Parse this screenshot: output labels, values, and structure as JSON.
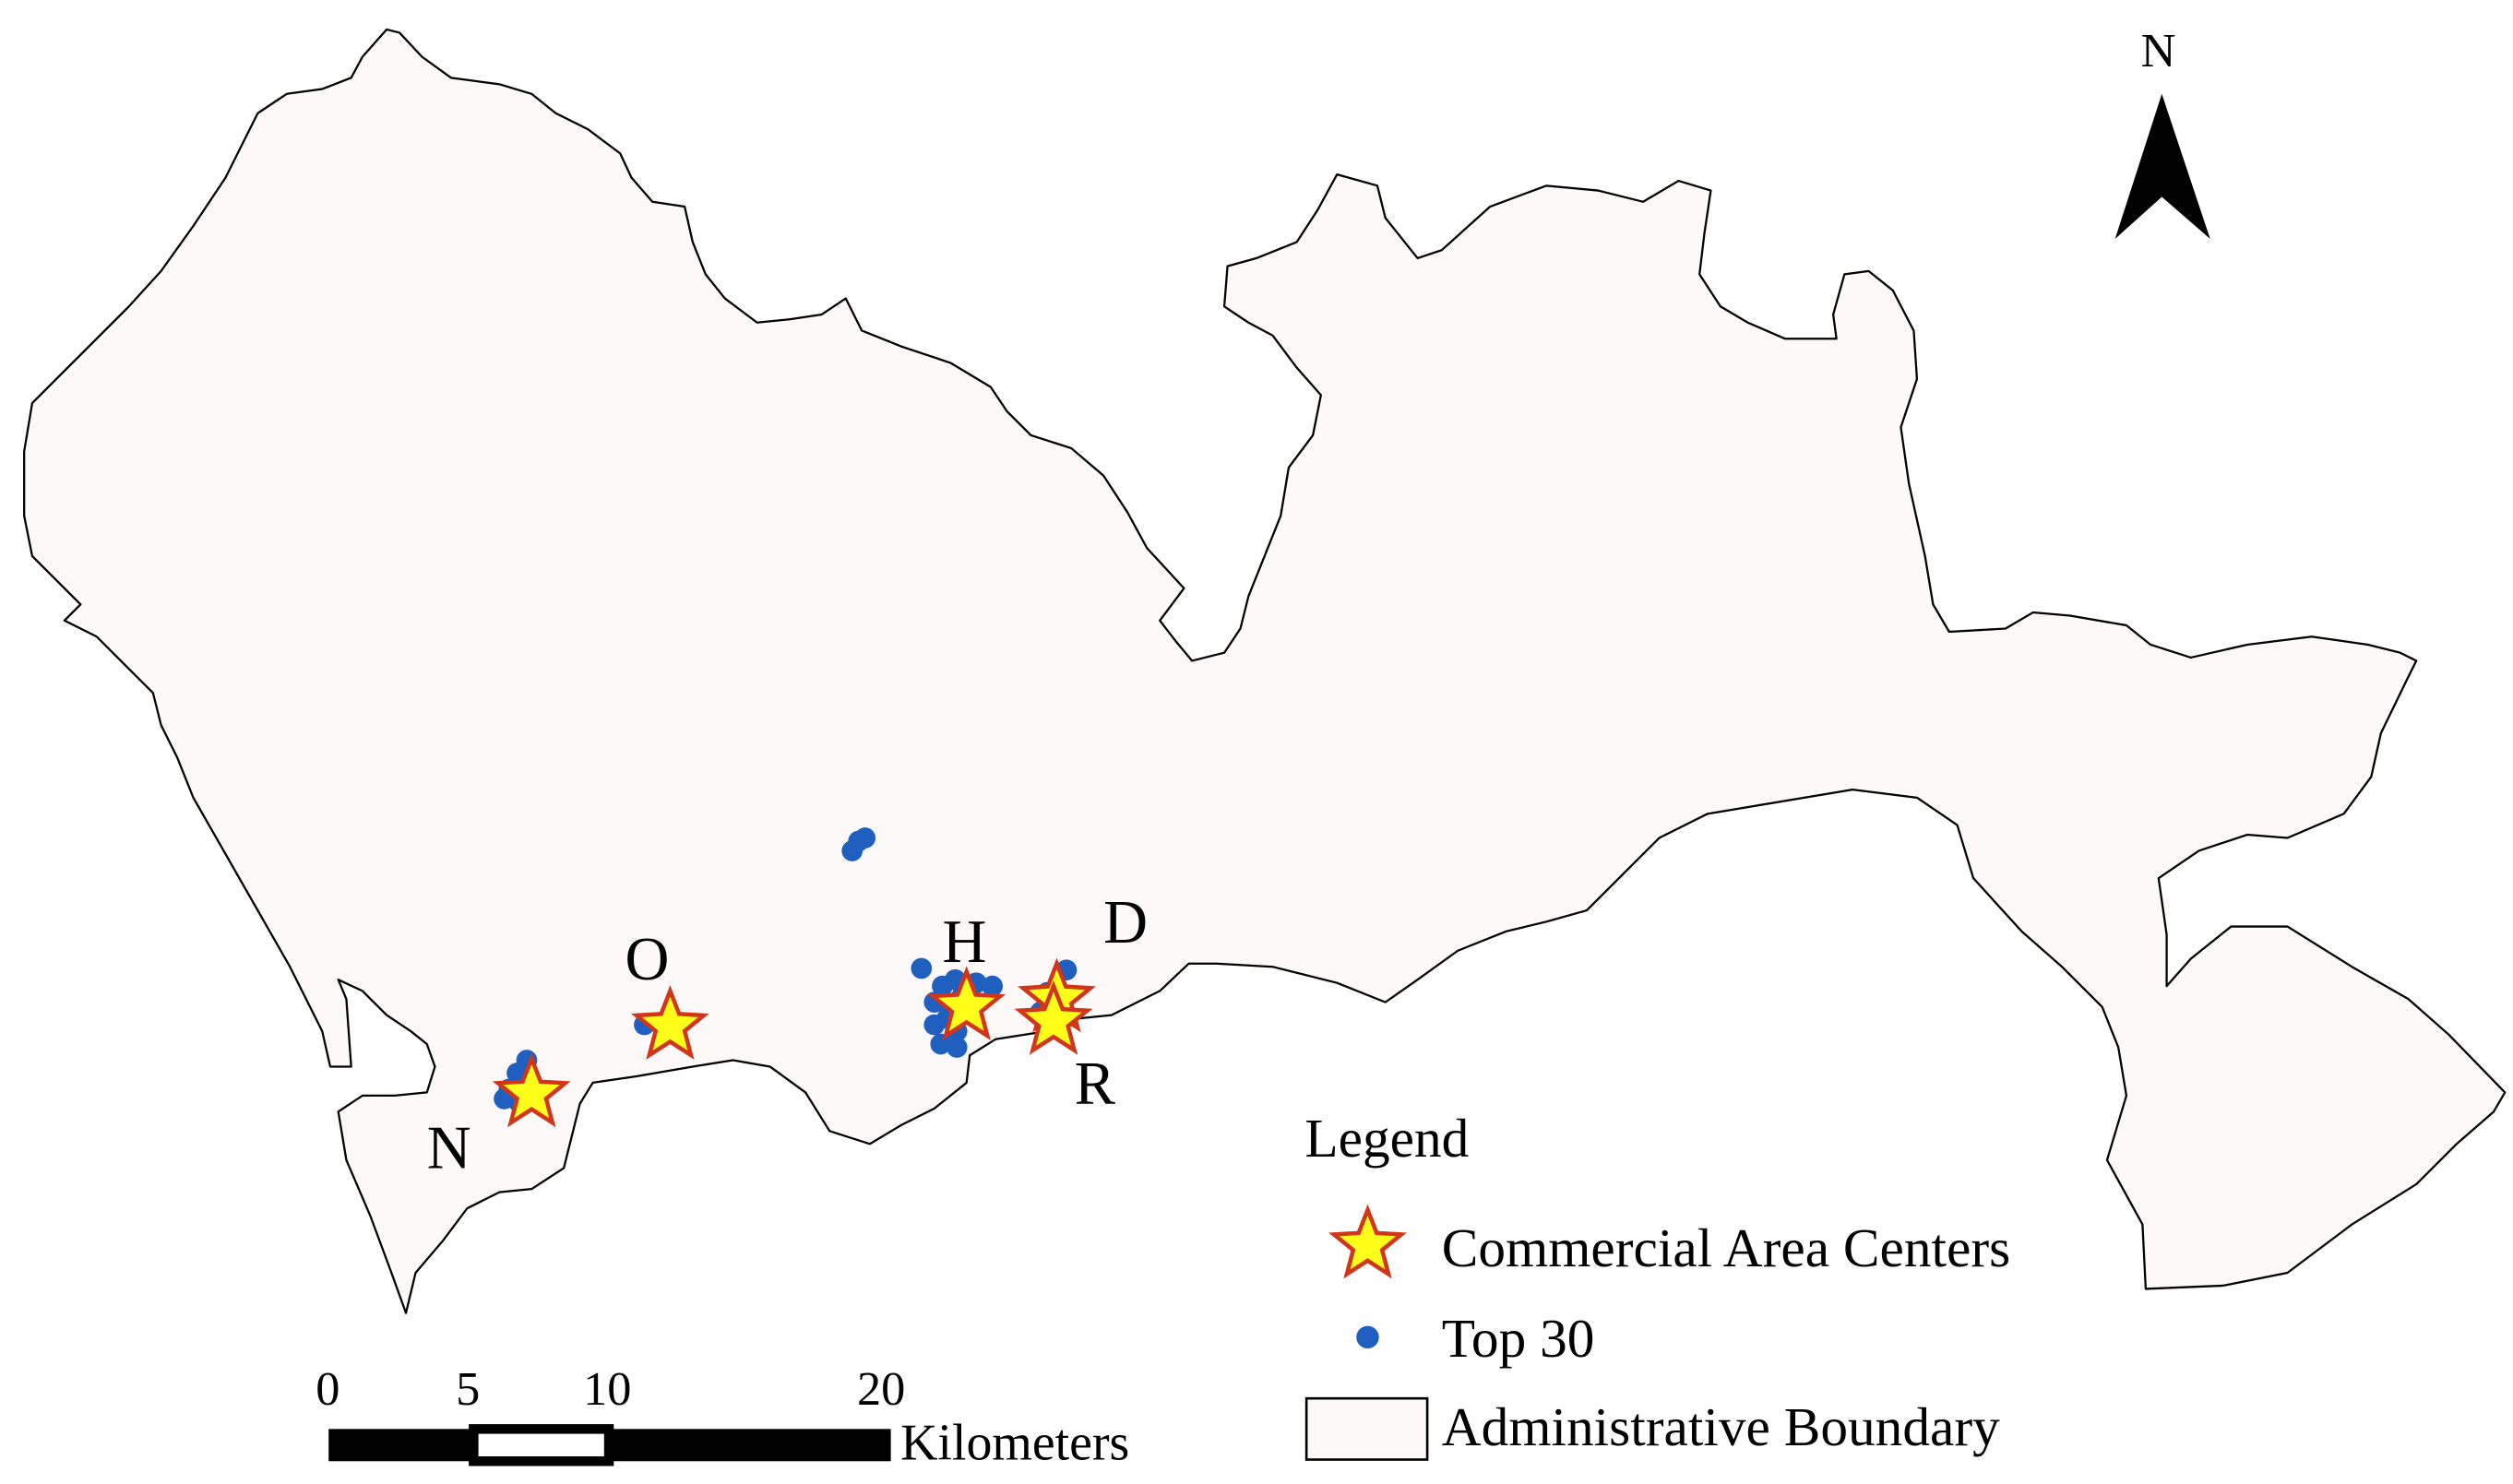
{
  "north_arrow": {
    "label": "N"
  },
  "center_labels": [
    "O",
    "H",
    "D",
    "N",
    "R"
  ],
  "legend": {
    "title": "Legend",
    "items": [
      {
        "label": "Commercial Area Centers",
        "symbol": "star-icon"
      },
      {
        "label": "Top 30",
        "symbol": "dot-icon"
      },
      {
        "label": "Administrative Boundary",
        "symbol": "rectangle-icon"
      }
    ]
  },
  "scale_bar": {
    "ticks": [
      "0",
      "5",
      "10",
      "20"
    ],
    "unit": "Kilometers"
  },
  "colors": {
    "boundary_fill": "#fdf9f9",
    "boundary_stroke": "#000000",
    "star_fill": "#ffff1a",
    "star_stroke": "#d2361a",
    "dot_fill": "#1f5fbf"
  }
}
